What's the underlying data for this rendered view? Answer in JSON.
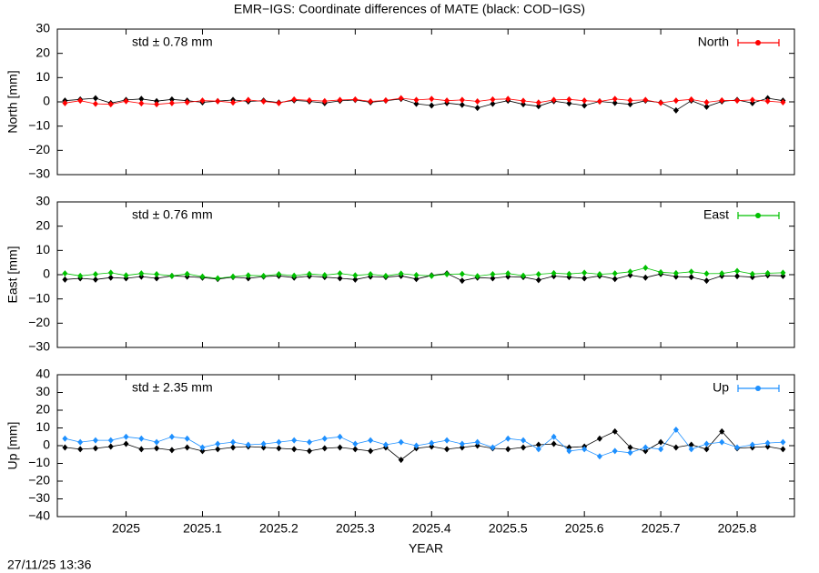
{
  "title": "EMR−IGS: Coordinate differences of MATE (black: COD−IGS)",
  "timestamp": "27/11/25 13:36",
  "chart_data": [
    {
      "type": "line",
      "ylabel": "North [mm]",
      "annotation": "std ± 0.78 mm",
      "annotation_color": "#ff0000",
      "xlim": [
        2024.91,
        2025.875
      ],
      "xticks": [
        2025,
        2025.1,
        2025.2,
        2025.3,
        2025.4,
        2025.5,
        2025.6,
        2025.7,
        2025.8
      ],
      "ylim": [
        -30,
        30
      ],
      "yticks": [
        {
          "value": -30,
          "label": "−30"
        },
        {
          "value": -20,
          "label": "−20"
        },
        {
          "value": -10,
          "label": "−10"
        },
        0,
        10,
        20,
        30
      ],
      "legend": "upper right",
      "x": [
        2024.92,
        2024.94,
        2024.96,
        2024.98,
        2025.0,
        2025.02,
        2025.04,
        2025.06,
        2025.08,
        2025.1,
        2025.12,
        2025.14,
        2025.16,
        2025.18,
        2025.2,
        2025.22,
        2025.24,
        2025.26,
        2025.28,
        2025.3,
        2025.32,
        2025.34,
        2025.36,
        2025.38,
        2025.4,
        2025.42,
        2025.44,
        2025.46,
        2025.48,
        2025.5,
        2025.52,
        2025.54,
        2025.56,
        2025.58,
        2025.6,
        2025.62,
        2025.64,
        2025.66,
        2025.68,
        2025.7,
        2025.72,
        2025.74,
        2025.76,
        2025.78,
        2025.8,
        2025.82,
        2025.84,
        2025.86
      ],
      "series": [
        {
          "color": "#000000",
          "values": [
            0.5,
            1,
            1.5,
            -0.5,
            0.8,
            1.2,
            0.3,
            1.0,
            0.5,
            -0.2,
            0.3,
            0.8,
            0.2,
            0.5,
            -0.3,
            0.6,
            0.2,
            -0.5,
            0.4,
            0.8,
            -0.2,
            0.5,
            1.2,
            -0.8,
            -1.5,
            -0.5,
            -1.2,
            -2.5,
            -0.8,
            0.5,
            -1.0,
            -1.8,
            0.3,
            -0.6,
            -1.5,
            0.2,
            -0.4,
            -1.0,
            0.5,
            -0.3,
            -3.5,
            0.5,
            -2.0,
            0.2,
            0.8,
            -0.5,
            1.5,
            0.5
          ]
        },
        {
          "name": "North",
          "color": "#ff0000",
          "values": [
            -0.5,
            0.5,
            -0.8,
            -1.0,
            0.3,
            -0.6,
            -1.0,
            -0.5,
            -0.2,
            0.5,
            0.3,
            -0.3,
            0.8,
            0.2,
            -0.5,
            1.0,
            0.6,
            0.3,
            0.8,
            1.0,
            0.2,
            0.6,
            1.5,
            0.8,
            1.2,
            0.5,
            0.8,
            0.2,
            1.0,
            1.2,
            0.4,
            -0.3,
            0.8,
            1.0,
            0.5,
            0.2,
            1.2,
            0.6,
            0.8,
            -0.4,
            0.5,
            1.0,
            -0.2,
            0.6,
            0.5,
            0.8,
            0.3,
            -0.2
          ]
        }
      ]
    },
    {
      "type": "line",
      "ylabel": "East [mm]",
      "annotation": "std ± 0.76 mm",
      "annotation_color": "#00c000",
      "xlim": [
        2024.91,
        2025.875
      ],
      "xticks": [
        2025,
        2025.1,
        2025.2,
        2025.3,
        2025.4,
        2025.5,
        2025.6,
        2025.7,
        2025.8
      ],
      "ylim": [
        -30,
        30
      ],
      "yticks": [
        {
          "value": -30,
          "label": "−30"
        },
        {
          "value": -20,
          "label": "−20"
        },
        {
          "value": -10,
          "label": "−10"
        },
        0,
        10,
        20,
        30
      ],
      "legend": "upper right",
      "x": [
        2024.92,
        2024.94,
        2024.96,
        2024.98,
        2025.0,
        2025.02,
        2025.04,
        2025.06,
        2025.08,
        2025.1,
        2025.12,
        2025.14,
        2025.16,
        2025.18,
        2025.2,
        2025.22,
        2025.24,
        2025.26,
        2025.28,
        2025.3,
        2025.32,
        2025.34,
        2025.36,
        2025.38,
        2025.4,
        2025.42,
        2025.44,
        2025.46,
        2025.48,
        2025.5,
        2025.52,
        2025.54,
        2025.56,
        2025.58,
        2025.6,
        2025.62,
        2025.64,
        2025.66,
        2025.68,
        2025.7,
        2025.72,
        2025.74,
        2025.76,
        2025.78,
        2025.8,
        2025.82,
        2025.84,
        2025.86
      ],
      "series": [
        {
          "color": "#000000",
          "values": [
            -2,
            -1.5,
            -2.0,
            -1.2,
            -1.5,
            -0.8,
            -1.5,
            -0.5,
            -0.8,
            -1.2,
            -1.8,
            -1.0,
            -1.5,
            -0.8,
            -0.5,
            -1.2,
            -0.6,
            -1.0,
            -1.5,
            -2.0,
            -0.8,
            -1.0,
            -0.5,
            -1.8,
            -0.3,
            0.5,
            -2.5,
            -1.2,
            -1.5,
            -0.8,
            -1.0,
            -2.2,
            -0.6,
            -1.0,
            -1.5,
            -0.5,
            -1.8,
            -0.2,
            -1.2,
            0.3,
            -0.8,
            -1.0,
            -2.5,
            -0.5,
            -0.6,
            -1.0,
            -0.3,
            -0.5
          ]
        },
        {
          "name": "East",
          "color": "#00c000",
          "values": [
            0.5,
            -0.5,
            0.2,
            0.8,
            -0.3,
            0.5,
            0.2,
            -0.5,
            0.3,
            -0.8,
            -1.5,
            -0.8,
            -0.3,
            -0.5,
            0.2,
            -0.4,
            0.3,
            -0.2,
            0.5,
            -0.3,
            0.2,
            -0.5,
            0.4,
            -0.2,
            -0.5,
            0.2,
            0.3,
            -0.6,
            0.2,
            0.5,
            -0.4,
            0.2,
            0.6,
            0.3,
            0.8,
            0.2,
            0.5,
            1.2,
            2.8,
            1.0,
            0.6,
            1.2,
            0.4,
            0.5,
            1.5,
            0.3,
            0.6,
            0.8
          ]
        }
      ]
    },
    {
      "type": "line",
      "ylabel": "Up [mm]",
      "xlabel": "YEAR",
      "annotation": "std ± 2.35 mm",
      "annotation_color": "#1e90ff",
      "xlim": [
        2024.91,
        2025.875
      ],
      "xticks": [
        2025,
        2025.1,
        2025.2,
        2025.3,
        2025.4,
        2025.5,
        2025.6,
        2025.7,
        2025.8
      ],
      "ylim": [
        -40,
        40
      ],
      "yticks": [
        {
          "value": -40,
          "label": "−40"
        },
        {
          "value": -30,
          "label": "−30"
        },
        {
          "value": -20,
          "label": "−20"
        },
        {
          "value": -10,
          "label": "−10"
        },
        0,
        10,
        20,
        30,
        40
      ],
      "legend": "upper right",
      "x": [
        2024.92,
        2024.94,
        2024.96,
        2024.98,
        2025.0,
        2025.02,
        2025.04,
        2025.06,
        2025.08,
        2025.1,
        2025.12,
        2025.14,
        2025.16,
        2025.18,
        2025.2,
        2025.22,
        2025.24,
        2025.26,
        2025.28,
        2025.3,
        2025.32,
        2025.34,
        2025.36,
        2025.38,
        2025.4,
        2025.42,
        2025.44,
        2025.46,
        2025.48,
        2025.5,
        2025.52,
        2025.54,
        2025.56,
        2025.58,
        2025.6,
        2025.62,
        2025.64,
        2025.66,
        2025.68,
        2025.7,
        2025.72,
        2025.74,
        2025.76,
        2025.78,
        2025.8,
        2025.82,
        2025.84,
        2025.86
      ],
      "series": [
        {
          "color": "#000000",
          "values": [
            -1,
            -2,
            -1.5,
            -0.5,
            1,
            -2,
            -1.5,
            -2.5,
            -1,
            -3,
            -2,
            -1,
            -0.5,
            -1,
            -1.5,
            -2,
            -3,
            -1.5,
            -1,
            -2,
            -3,
            -1,
            -8,
            -1.5,
            -0.5,
            -2,
            -1,
            0,
            -1.5,
            -2,
            -1,
            0.5,
            1,
            -1,
            -0.5,
            4,
            8,
            -1,
            -3,
            2,
            -1,
            0.5,
            -2,
            8,
            -1.5,
            -1,
            -0.5,
            -2
          ]
        },
        {
          "name": "Up",
          "color": "#1e90ff",
          "values": [
            4,
            2,
            3,
            3,
            5,
            4,
            2,
            5,
            4,
            -1,
            1,
            2,
            0.5,
            1,
            2,
            3,
            2,
            4,
            5,
            1,
            3,
            0.5,
            2,
            0,
            1.5,
            3,
            1,
            2,
            -1,
            4,
            3,
            -2,
            5,
            -3,
            -2,
            -6,
            -3,
            -4,
            -1,
            -2,
            9,
            -2,
            1,
            2,
            -1,
            0.5,
            1.5,
            2
          ]
        }
      ]
    }
  ]
}
